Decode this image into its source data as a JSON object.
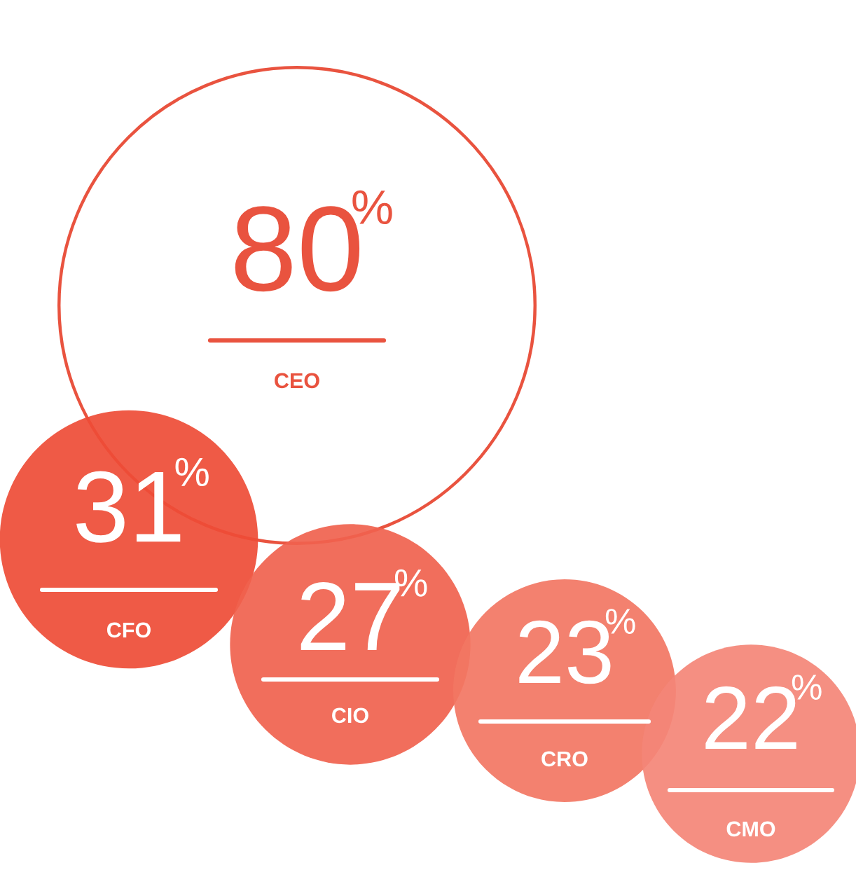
{
  "chart_data": {
    "type": "other",
    "categories": [
      "CEO",
      "CFO",
      "CIO",
      "CRO",
      "CMO"
    ],
    "values": [
      80,
      31,
      27,
      23,
      22
    ],
    "value_labels": [
      "80%",
      "31%",
      "27%",
      "23%",
      "22%"
    ],
    "colors": [
      "#e9533f",
      "#ee4c36",
      "#f0624e",
      "#f27663",
      "#f48677"
    ]
  }
}
